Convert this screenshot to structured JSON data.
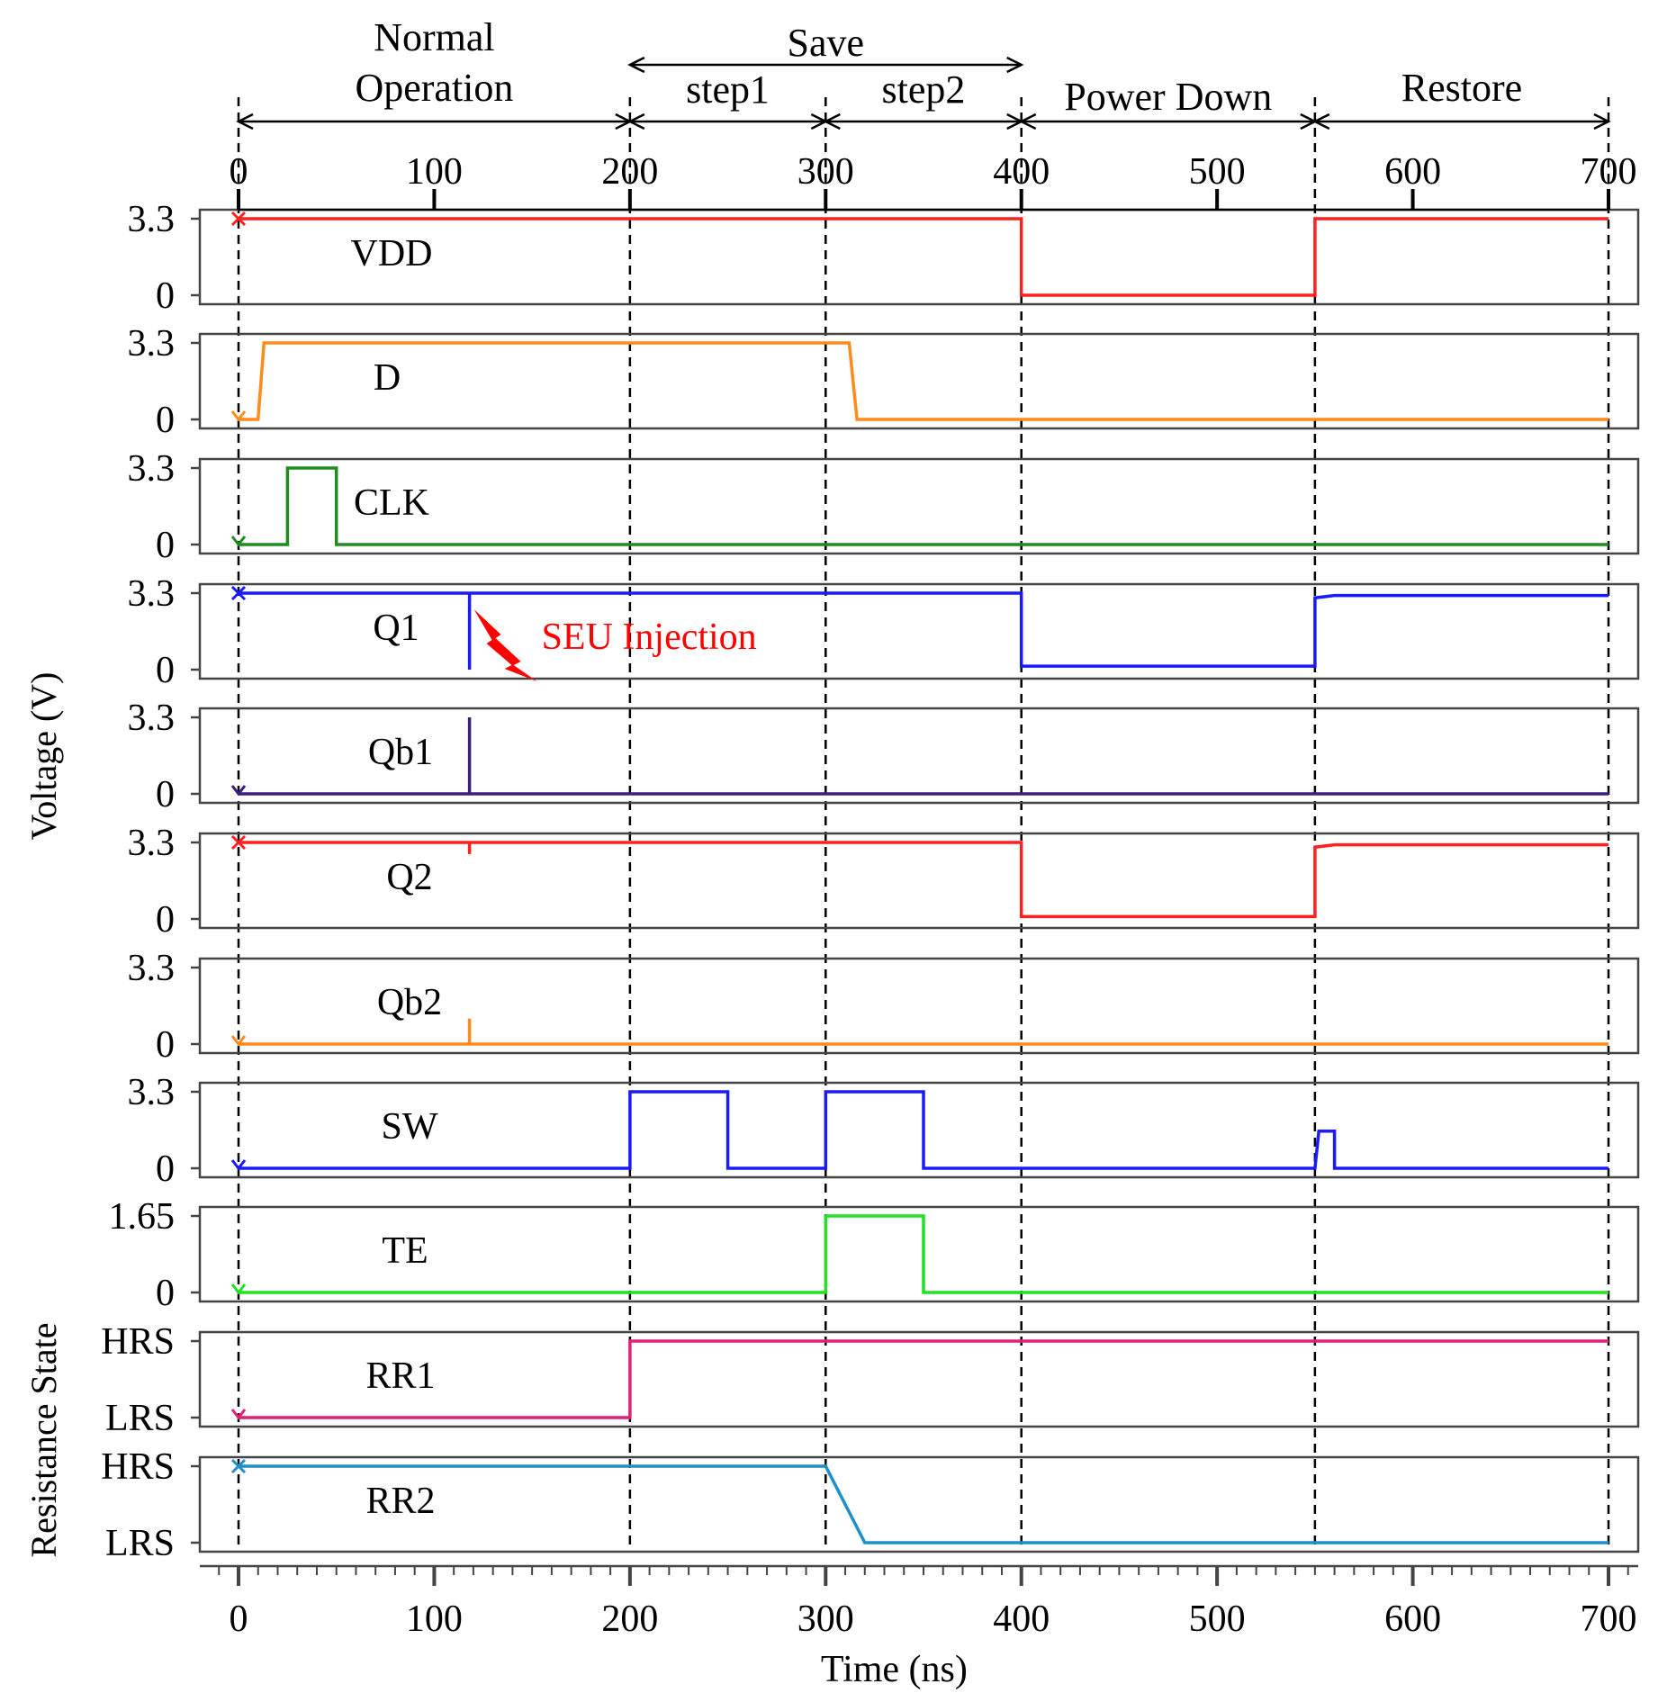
{
  "chart_data": {
    "type": "line",
    "title": "",
    "xlabel": "Time (ns)",
    "ylabel_voltage": "Voltage (V)",
    "ylabel_resistance": "Resistance State",
    "xlim": [
      0,
      700
    ],
    "xticks": [
      "0",
      "100",
      "200",
      "300",
      "400",
      "500",
      "600",
      "700"
    ],
    "phases": [
      {
        "label": "Normal",
        "label2": "Operation",
        "start": 0,
        "end": 200
      },
      {
        "label": "Save",
        "start": 200,
        "end": 400
      },
      {
        "label": "step1",
        "start": 200,
        "end": 300
      },
      {
        "label": "step2",
        "start": 300,
        "end": 400
      },
      {
        "label": "Power Down",
        "start": 400,
        "end": 550
      },
      {
        "label": "Restore",
        "start": 550,
        "end": 700
      }
    ],
    "vlines": [
      0,
      200,
      300,
      400,
      550,
      700
    ],
    "annotation": {
      "text": "SEU Injection",
      "x": 118,
      "color": "#ff0000"
    },
    "series": [
      {
        "name": "VDD",
        "color": "#ff2020",
        "marker": "x",
        "ymin": 0,
        "ymax": 3.3,
        "yticks": [
          "3.3",
          "0"
        ],
        "points": [
          [
            0,
            3.3
          ],
          [
            400,
            3.3
          ],
          [
            400,
            0
          ],
          [
            550,
            0
          ],
          [
            550,
            3.3
          ],
          [
            700,
            3.3
          ]
        ]
      },
      {
        "name": "D",
        "color": "#ff8c1a",
        "marker": "v",
        "ymin": 0,
        "ymax": 3.3,
        "yticks": [
          "3.3",
          "0"
        ],
        "points": [
          [
            0,
            0
          ],
          [
            10,
            0
          ],
          [
            13,
            3.3
          ],
          [
            312,
            3.3
          ],
          [
            316,
            0
          ],
          [
            700,
            0
          ]
        ]
      },
      {
        "name": "CLK",
        "color": "#1f8c1f",
        "marker": "v",
        "ymin": 0,
        "ymax": 3.3,
        "yticks": [
          "3.3",
          "0"
        ],
        "points": [
          [
            0,
            0
          ],
          [
            25,
            0
          ],
          [
            25,
            3.3
          ],
          [
            50,
            3.3
          ],
          [
            50,
            0
          ],
          [
            700,
            0
          ]
        ]
      },
      {
        "name": "Q1",
        "color": "#1a1aff",
        "marker": "x",
        "ymin": 0,
        "ymax": 3.3,
        "yticks": [
          "3.3",
          "0"
        ],
        "points": [
          [
            0,
            3.3
          ],
          [
            118,
            3.3
          ],
          [
            118,
            0
          ],
          [
            118,
            3.3
          ],
          [
            400,
            3.3
          ],
          [
            400,
            0.15
          ],
          [
            550,
            0.15
          ],
          [
            550,
            3.1
          ],
          [
            560,
            3.2
          ],
          [
            700,
            3.2
          ]
        ]
      },
      {
        "name": "Qb1",
        "color": "#3c1f7a",
        "marker": "v",
        "ymin": 0,
        "ymax": 3.3,
        "yticks": [
          "3.3",
          "0"
        ],
        "points": [
          [
            0,
            0
          ],
          [
            118,
            0
          ],
          [
            118,
            3.3
          ],
          [
            118,
            0
          ],
          [
            700,
            0
          ]
        ]
      },
      {
        "name": "Q2",
        "color": "#ff2020",
        "marker": "x",
        "ymin": 0,
        "ymax": 3.3,
        "yticks": [
          "3.3",
          "0"
        ],
        "points": [
          [
            0,
            3.3
          ],
          [
            118,
            3.3
          ],
          [
            118,
            2.8
          ],
          [
            118,
            3.3
          ],
          [
            400,
            3.3
          ],
          [
            400,
            0.1
          ],
          [
            550,
            0.1
          ],
          [
            550,
            3.1
          ],
          [
            560,
            3.2
          ],
          [
            700,
            3.2
          ]
        ]
      },
      {
        "name": "Qb2",
        "color": "#ff8c1a",
        "marker": "v",
        "ymin": 0,
        "ymax": 3.3,
        "yticks": [
          "3.3",
          "0"
        ],
        "points": [
          [
            0,
            0
          ],
          [
            118,
            0
          ],
          [
            118,
            1.1
          ],
          [
            118,
            0
          ],
          [
            700,
            0
          ]
        ]
      },
      {
        "name": "SW",
        "color": "#1a1aff",
        "marker": "v",
        "ymin": 0,
        "ymax": 3.3,
        "yticks": [
          "3.3",
          "0"
        ],
        "points": [
          [
            0,
            0
          ],
          [
            200,
            0
          ],
          [
            200,
            3.3
          ],
          [
            250,
            3.3
          ],
          [
            250,
            0
          ],
          [
            300,
            0
          ],
          [
            300,
            3.3
          ],
          [
            350,
            3.3
          ],
          [
            350,
            0
          ],
          [
            550,
            0
          ],
          [
            552,
            1.6
          ],
          [
            560,
            1.6
          ],
          [
            560,
            0
          ],
          [
            700,
            0
          ]
        ]
      },
      {
        "name": "TE",
        "color": "#22e022",
        "marker": "v",
        "ymin": 0,
        "ymax": 1.65,
        "yticks": [
          "1.65",
          "0"
        ],
        "points": [
          [
            0,
            0
          ],
          [
            300,
            0
          ],
          [
            300,
            1.65
          ],
          [
            350,
            1.65
          ],
          [
            350,
            0
          ],
          [
            700,
            0
          ]
        ]
      },
      {
        "name": "RR1",
        "color": "#e0207a",
        "marker": "v",
        "ymin": 0,
        "ymax": 1,
        "yticks": [
          "HRS",
          "LRS"
        ],
        "points": [
          [
            0,
            0
          ],
          [
            200,
            0
          ],
          [
            200,
            1
          ],
          [
            700,
            1
          ]
        ]
      },
      {
        "name": "RR2",
        "color": "#1f8fc8",
        "marker": "x",
        "ymin": 0,
        "ymax": 1,
        "yticks": [
          "HRS",
          "LRS"
        ],
        "points": [
          [
            0,
            1
          ],
          [
            300,
            1
          ],
          [
            320,
            0
          ],
          [
            700,
            0
          ]
        ]
      }
    ]
  }
}
